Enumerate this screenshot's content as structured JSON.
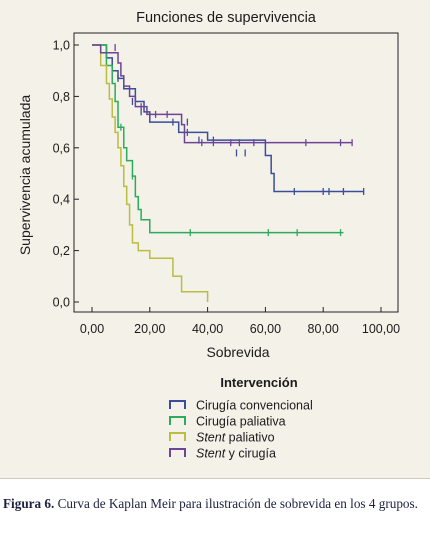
{
  "caption": {
    "label": "Figura 6.",
    "text": "Curva de Kaplan Meir para ilustración de sobrevida en los 4 grupos."
  },
  "chart_data": {
    "type": "line",
    "step": true,
    "title": "Funciones de supervivencia",
    "xlabel": "Sobrevida",
    "ylabel": "Supervivencia acumulada",
    "xlim": [
      0,
      100
    ],
    "ylim": [
      0.0,
      1.0
    ],
    "x_ticks": [
      "0,00",
      "20,00",
      "40,00",
      "60,00",
      "80,00",
      "100,00"
    ],
    "y_ticks": [
      "0,0",
      "0,2",
      "0,4",
      "0,6",
      "0,8",
      "1,0"
    ],
    "x_tick_values": [
      0,
      20,
      40,
      60,
      80,
      100
    ],
    "y_tick_values": [
      0,
      0.2,
      0.4,
      0.6,
      0.8,
      1.0
    ],
    "grid": false,
    "legend": {
      "title": "Intervención",
      "placement": "bottom",
      "entries": [
        {
          "prefix": "",
          "italic": "",
          "rest": "Cirugía convencional"
        },
        {
          "prefix": "",
          "italic": "",
          "rest": "Cirugía paliativa"
        },
        {
          "prefix": "",
          "italic": "Stent",
          "rest": " paliativo"
        },
        {
          "prefix": "",
          "italic": "Stent",
          "rest": " y cirugía"
        }
      ]
    },
    "series": [
      {
        "name": "Cirugía convencional",
        "color": "#3a4e9a",
        "steps": [
          [
            0,
            1.0
          ],
          [
            5,
            0.95
          ],
          [
            7,
            0.9
          ],
          [
            9,
            0.87
          ],
          [
            11,
            0.83
          ],
          [
            15,
            0.78
          ],
          [
            18,
            0.74
          ],
          [
            20,
            0.7
          ],
          [
            30,
            0.66
          ],
          [
            40,
            0.63
          ],
          [
            60,
            0.57
          ],
          [
            62,
            0.5
          ],
          [
            63,
            0.43
          ],
          [
            94,
            0.43
          ]
        ],
        "censored": [
          [
            9,
            0.87
          ],
          [
            14,
            0.78
          ],
          [
            17,
            0.74
          ],
          [
            28,
            0.7
          ],
          [
            33,
            0.7
          ],
          [
            37,
            0.63
          ],
          [
            42,
            0.63
          ],
          [
            50,
            0.58
          ],
          [
            53,
            0.58
          ],
          [
            70,
            0.43
          ],
          [
            80,
            0.43
          ],
          [
            82,
            0.43
          ],
          [
            87,
            0.43
          ],
          [
            94,
            0.43
          ]
        ]
      },
      {
        "name": "Cirugía paliativa",
        "color": "#2dab5c",
        "steps": [
          [
            0,
            1.0
          ],
          [
            5,
            0.92
          ],
          [
            7,
            0.85
          ],
          [
            8,
            0.78
          ],
          [
            9,
            0.68
          ],
          [
            11,
            0.6
          ],
          [
            12,
            0.55
          ],
          [
            14,
            0.49
          ],
          [
            15,
            0.41
          ],
          [
            16,
            0.36
          ],
          [
            17,
            0.32
          ],
          [
            20,
            0.27
          ],
          [
            87,
            0.27
          ]
        ],
        "censored": [
          [
            10,
            0.68
          ],
          [
            14,
            0.49
          ],
          [
            34,
            0.27
          ],
          [
            61,
            0.27
          ],
          [
            71,
            0.27
          ],
          [
            86,
            0.27
          ]
        ]
      },
      {
        "name": "Stent paliativo",
        "color": "#b9bd42",
        "steps": [
          [
            0,
            1.0
          ],
          [
            3,
            0.92
          ],
          [
            5,
            0.85
          ],
          [
            6,
            0.79
          ],
          [
            7,
            0.72
          ],
          [
            8,
            0.66
          ],
          [
            9,
            0.6
          ],
          [
            10,
            0.53
          ],
          [
            11,
            0.45
          ],
          [
            12,
            0.38
          ],
          [
            13,
            0.3
          ],
          [
            14,
            0.23
          ],
          [
            16,
            0.2
          ],
          [
            20,
            0.17
          ],
          [
            28,
            0.1
          ],
          [
            31,
            0.04
          ],
          [
            40,
            0.0
          ]
        ],
        "censored": []
      },
      {
        "name": "Stent y cirugía",
        "color": "#6d4596",
        "steps": [
          [
            0,
            1.0
          ],
          [
            3,
            0.97
          ],
          [
            9,
            0.93
          ],
          [
            10,
            0.88
          ],
          [
            11,
            0.84
          ],
          [
            13,
            0.8
          ],
          [
            15,
            0.76
          ],
          [
            19,
            0.73
          ],
          [
            31,
            0.69
          ],
          [
            32,
            0.62
          ],
          [
            90,
            0.62
          ]
        ],
        "censored": [
          [
            8,
            0.99
          ],
          [
            17,
            0.76
          ],
          [
            22,
            0.73
          ],
          [
            26,
            0.73
          ],
          [
            33,
            0.66
          ],
          [
            38,
            0.62
          ],
          [
            42,
            0.62
          ],
          [
            48,
            0.62
          ],
          [
            51,
            0.62
          ],
          [
            56,
            0.62
          ],
          [
            74,
            0.62
          ],
          [
            86,
            0.62
          ],
          [
            90,
            0.62
          ]
        ]
      }
    ]
  }
}
